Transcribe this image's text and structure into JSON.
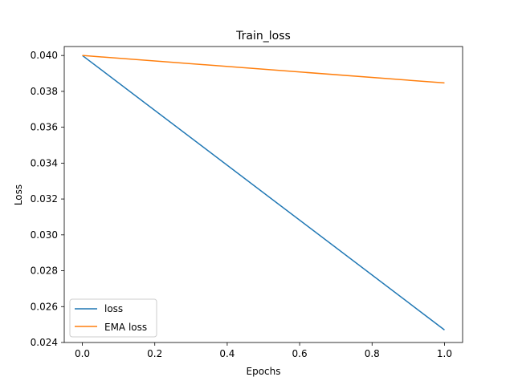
{
  "chart_data": {
    "type": "line",
    "title": "Train_loss",
    "xlabel": "Epochs",
    "ylabel": "Loss",
    "xlim": [
      -0.05,
      1.05
    ],
    "ylim": [
      0.024,
      0.0405
    ],
    "xticks": [
      0.0,
      0.2,
      0.4,
      0.6,
      0.8,
      1.0
    ],
    "xtick_labels": [
      "0.0",
      "0.2",
      "0.4",
      "0.6",
      "0.8",
      "1.0"
    ],
    "yticks": [
      0.024,
      0.026,
      0.028,
      0.03,
      0.032,
      0.034,
      0.036,
      0.038,
      0.04
    ],
    "ytick_labels": [
      "0.024",
      "0.026",
      "0.028",
      "0.030",
      "0.032",
      "0.034",
      "0.036",
      "0.038",
      "0.040"
    ],
    "grid": false,
    "legend_position": "lower-left",
    "x": [
      0,
      1
    ],
    "series": [
      {
        "name": "loss",
        "color": "#1f77b4",
        "values": [
          0.04,
          0.0247
        ]
      },
      {
        "name": "EMA loss",
        "color": "#ff7f0e",
        "values": [
          0.04,
          0.03847
        ]
      }
    ]
  }
}
